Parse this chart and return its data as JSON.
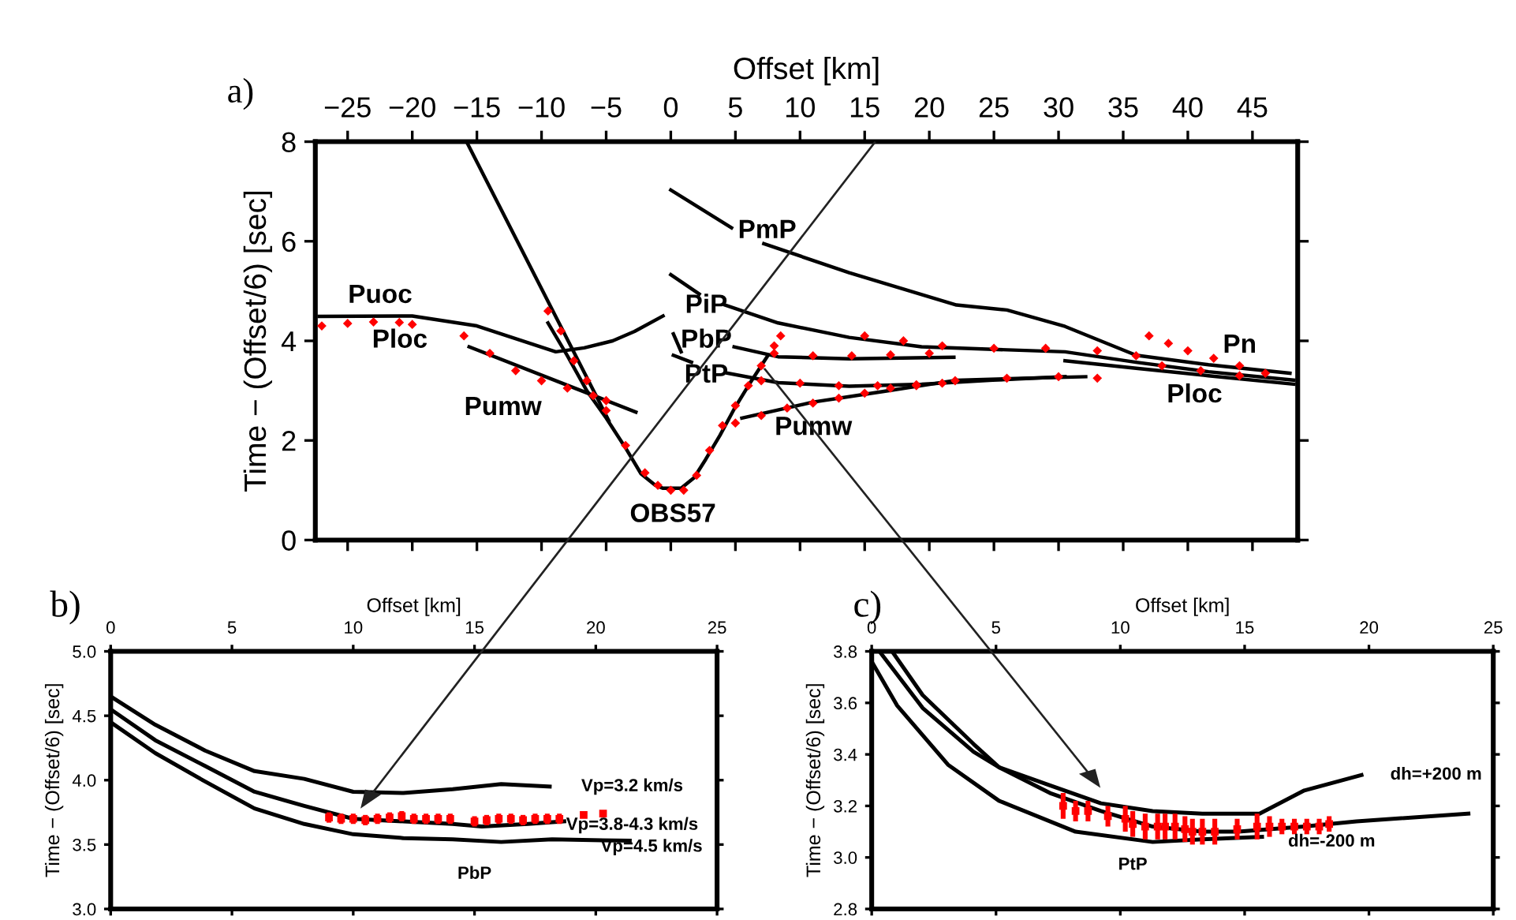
{
  "chart_data": [
    {
      "type": "line",
      "title": "a)",
      "xlabel": "Offset [km]",
      "ylabel": "Time − (Offset/6) [sec]",
      "xlim": [
        -27.5,
        48.5
      ],
      "ylim": [
        0,
        8
      ],
      "xticks": [
        -25,
        -20,
        -15,
        -10,
        -5,
        0,
        5,
        10,
        15,
        20,
        25,
        30,
        35,
        40,
        45
      ],
      "yticks": [
        0,
        2,
        4,
        6,
        8
      ],
      "grid": false,
      "series": [
        {
          "color": "#000000",
          "x": [
            -9.5,
            -8,
            -6.5,
            -5,
            -3.5,
            -2.3,
            -1.2,
            -0.6,
            0.8,
            1.8,
            2.7,
            3.8,
            4.9,
            6,
            7.5
          ],
          "values": [
            4.36,
            3.7,
            3.0,
            2.45,
            1.85,
            1.33,
            1.1,
            1.04,
            1.04,
            1.25,
            1.62,
            2.1,
            2.63,
            3.1,
            3.7
          ]
        },
        {
          "color": "#000000",
          "x": [
            -27.2,
            -20,
            -15,
            -12.3,
            -8.9,
            -6.7,
            -4.5,
            -2.8,
            -0.6
          ],
          "values": [
            4.49,
            4.5,
            4.3,
            4.07,
            3.78,
            3.86,
            4.0,
            4.19,
            4.5
          ]
        },
        {
          "color": "#000000",
          "x": [
            -15.6,
            -2.7
          ],
          "values": [
            3.88,
            2.57
          ]
        },
        {
          "color": "#000000",
          "x": [
            0,
            4.7
          ],
          "values": [
            7.03,
            6.27
          ]
        },
        {
          "color": "#000000",
          "x": [
            7.2,
            13.8,
            22.1,
            26,
            30.5,
            36,
            41.6,
            47.9
          ],
          "values": [
            5.95,
            5.37,
            4.72,
            4.62,
            4.29,
            3.71,
            3.52,
            3.35
          ]
        },
        {
          "color": "#000000",
          "x": [
            0,
            2.2
          ],
          "values": [
            5.33,
            4.94
          ]
        },
        {
          "color": "#000000",
          "x": [
            4.2,
            8.3,
            13.8,
            19.4,
            24.9,
            30.5,
            36,
            41.6,
            48.2
          ],
          "values": [
            4.72,
            4.36,
            4.07,
            3.88,
            3.83,
            3.78,
            3.57,
            3.38,
            3.21
          ]
        },
        {
          "color": "#000000",
          "x": [
            0.2,
            0.8
          ],
          "values": [
            4.14,
            3.78
          ]
        },
        {
          "color": "#000000",
          "x": [
            4.9,
            8.3,
            13.8,
            21.9
          ],
          "values": [
            3.88,
            3.68,
            3.64,
            3.67
          ]
        },
        {
          "color": "#000000",
          "x": [
            0.2,
            1.6
          ],
          "values": [
            3.71,
            3.57
          ]
        },
        {
          "color": "#000000",
          "x": [
            4.4,
            8.3,
            13.8,
            19.4,
            24.9,
            30.5
          ],
          "values": [
            3.35,
            3.16,
            3.09,
            3.13,
            3.21,
            3.28
          ]
        },
        {
          "color": "#000000",
          "x": [
            5.5,
            11,
            16.6,
            22.1,
            27.7,
            32.1
          ],
          "values": [
            2.45,
            2.77,
            2.99,
            3.21,
            3.25,
            3.28
          ]
        },
        {
          "color": "#000000",
          "x": [
            30.5,
            36,
            41.6,
            48.2
          ],
          "values": [
            3.6,
            3.45,
            3.3,
            3.13
          ]
        },
        {
          "color": "#000000",
          "x": [
            -15.8,
            -4.8
          ],
          "values": [
            8,
            2.4
          ]
        },
        {
          "type": "scatter",
          "color": "#ff0000",
          "marker": "diamond",
          "x": [
            -27,
            -25,
            -23,
            -21,
            -20,
            -16,
            -14,
            -12,
            -10,
            -8,
            -6,
            -5,
            -9.5,
            -8.5,
            -7.5,
            -6.5,
            -5,
            -3.5,
            -2,
            -1,
            0,
            1,
            2,
            3,
            4,
            5,
            6,
            7,
            8,
            8.5,
            5,
            7,
            9,
            11,
            13,
            15,
            17,
            19,
            21,
            7,
            10,
            13,
            16,
            19,
            22,
            26,
            30,
            33,
            8,
            11,
            14,
            17,
            20,
            15,
            18,
            21,
            25,
            29,
            33,
            36,
            37,
            38.5,
            40,
            42,
            44,
            46,
            38,
            41,
            44
          ],
          "values": [
            4.3,
            4.35,
            4.38,
            4.37,
            4.33,
            4.1,
            3.75,
            3.4,
            3.2,
            3.05,
            2.9,
            2.8,
            4.6,
            4.2,
            3.6,
            3.2,
            2.6,
            1.9,
            1.35,
            1.1,
            1.0,
            1.0,
            1.3,
            1.8,
            2.3,
            2.7,
            3.1,
            3.5,
            3.9,
            4.1,
            2.35,
            2.5,
            2.65,
            2.75,
            2.85,
            2.95,
            3.05,
            3.1,
            3.15,
            3.2,
            3.15,
            3.1,
            3.1,
            3.12,
            3.2,
            3.25,
            3.28,
            3.25,
            3.75,
            3.7,
            3.7,
            3.72,
            3.75,
            4.1,
            4.0,
            3.9,
            3.85,
            3.85,
            3.8,
            3.7,
            4.1,
            3.95,
            3.8,
            3.65,
            3.5,
            3.35,
            3.5,
            3.4,
            3.3
          ]
        }
      ],
      "annotations": [
        "Puoc",
        "Ploc",
        "Pumw",
        "PmP",
        "PiP",
        "PbP",
        "PtP",
        "OBS57",
        "Pumw",
        "Pn",
        "Ploc"
      ]
    },
    {
      "type": "line",
      "title": "b)",
      "xlabel": "Offset [km]",
      "ylabel": "Time − (Offset/6) [sec]",
      "xlim": [
        0,
        25
      ],
      "ylim": [
        3.0,
        5.0
      ],
      "xticks": [
        0,
        5,
        10,
        15,
        20,
        25
      ],
      "yticks": [
        {
          "value": 3.0,
          "label": "3.0"
        },
        3.5,
        {
          "value": 4.0,
          "label": "4.0"
        },
        4.5,
        {
          "value": 5.0,
          "label": "5.0"
        }
      ],
      "grid": false,
      "series": [
        {
          "color": "#000000",
          "x": [
            0,
            1.84,
            3.89,
            5.93,
            7.98,
            10,
            12.07,
            14.1,
            16.1,
            18.1
          ],
          "values": [
            4.65,
            4.43,
            4.23,
            4.07,
            4.01,
            3.91,
            3.9,
            3.93,
            3.97,
            3.95
          ]
        },
        {
          "color": "#000000",
          "x": [
            0,
            1.84,
            3.89,
            5.93,
            7.98,
            10,
            12.07,
            14.1,
            15.3,
            17.2,
            18.7
          ],
          "values": [
            4.55,
            4.31,
            4.11,
            3.91,
            3.8,
            3.7,
            3.68,
            3.66,
            3.64,
            3.66,
            3.68
          ]
        },
        {
          "color": "#000000",
          "x": [
            0,
            1.84,
            3.89,
            5.93,
            7.98,
            10,
            12.07,
            14.1,
            16.1,
            18.2,
            21.4
          ],
          "values": [
            4.45,
            4.21,
            3.99,
            3.78,
            3.66,
            3.58,
            3.55,
            3.54,
            3.52,
            3.54,
            3.53
          ]
        },
        {
          "type": "scatter",
          "color": "#ff0000",
          "marker": "square",
          "x": [
            9,
            9.5,
            10,
            10.5,
            11,
            11.5,
            12,
            12.5,
            13,
            13.5,
            14,
            15,
            15.5,
            16,
            16.5,
            17,
            17.5,
            18,
            18.5,
            19.5,
            20.3
          ],
          "values": [
            3.71,
            3.7,
            3.7,
            3.69,
            3.7,
            3.71,
            3.72,
            3.7,
            3.7,
            3.7,
            3.7,
            3.68,
            3.69,
            3.7,
            3.7,
            3.69,
            3.7,
            3.7,
            3.7,
            3.73,
            3.74
          ],
          "errors": [
            0.04,
            0.04,
            0.04,
            0.04,
            0.04,
            0.04,
            0.04,
            0.04,
            0.04,
            0.04,
            0.04,
            0.04,
            0.04,
            0.04,
            0.04,
            0.04,
            0.04,
            0.04,
            0.04,
            0.02,
            0.02
          ]
        }
      ],
      "annotations": [
        "Vp=3.2 km/s",
        "Vp=3.8-4.3 km/s",
        "Vp=4.5 km/s",
        "PbP"
      ]
    },
    {
      "type": "line",
      "title": "c)",
      "xlabel": "Offset [km]",
      "ylabel": "Time − (Offset/6) [sec]",
      "xlim": [
        0,
        25
      ],
      "ylim": [
        2.8,
        3.8
      ],
      "xticks": [
        0,
        5,
        10,
        15,
        20,
        25
      ],
      "yticks": [
        2.8,
        {
          "value": 3.0,
          "label": "3.0"
        },
        3.2,
        3.4,
        3.6,
        3.8
      ],
      "grid": false,
      "series": [
        {
          "color": "#000000",
          "x": [
            0.82,
            2.05,
            4.1,
            5.12,
            7.17,
            9.22,
            11.3,
            13.3,
            15.6,
            17.4,
            19.7
          ],
          "values": [
            3.8,
            3.63,
            3.44,
            3.35,
            3.28,
            3.21,
            3.18,
            3.17,
            3.17,
            3.26,
            3.32
          ]
        },
        {
          "color": "#000000",
          "x": [
            0.31,
            2.05,
            4.1,
            5.12,
            7.17,
            9.22,
            11.3,
            13.3,
            14.75,
            17.4,
            19.5,
            24
          ],
          "values": [
            3.8,
            3.58,
            3.41,
            3.35,
            3.25,
            3.18,
            3.12,
            3.1,
            3.1,
            3.12,
            3.14,
            3.17
          ]
        },
        {
          "color": "#000000",
          "x": [
            0,
            1.02,
            3.07,
            5.12,
            8.2,
            11.3,
            13.3,
            15.7
          ],
          "values": [
            3.76,
            3.59,
            3.36,
            3.22,
            3.1,
            3.06,
            3.07,
            3.08
          ]
        },
        {
          "type": "scatter",
          "color": "#ff0000",
          "marker": "square",
          "x": [
            7.7,
            8.2,
            8.7,
            9.5,
            10.2,
            10.5,
            11,
            11.5,
            11.8,
            12.2,
            12.6,
            12.9,
            13.3,
            13.8,
            14.7,
            15.5,
            16,
            16.5,
            17,
            17.5,
            18,
            18.4
          ],
          "values": [
            3.2,
            3.18,
            3.18,
            3.16,
            3.15,
            3.13,
            3.12,
            3.12,
            3.12,
            3.12,
            3.11,
            3.1,
            3.1,
            3.1,
            3.11,
            3.12,
            3.12,
            3.12,
            3.12,
            3.12,
            3.12,
            3.13
          ],
          "errors": [
            0.05,
            0.04,
            0.04,
            0.04,
            0.05,
            0.05,
            0.05,
            0.05,
            0.05,
            0.05,
            0.05,
            0.05,
            0.05,
            0.05,
            0.04,
            0.05,
            0.04,
            0.03,
            0.03,
            0.03,
            0.03,
            0.03
          ]
        }
      ],
      "annotations": [
        "dh=+200 m",
        "dh=-200 m",
        "PtP"
      ]
    }
  ]
}
